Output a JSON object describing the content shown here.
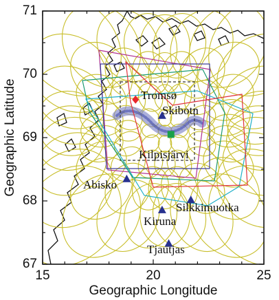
{
  "chart_data": {
    "type": "map",
    "xlabel": "Geographic Longitude",
    "ylabel": "Geographic Latitude",
    "xlim": [
      15,
      25
    ],
    "ylim": [
      67,
      71
    ],
    "x_ticks": [
      "15",
      "20",
      "25"
    ],
    "y_ticks": [
      "67",
      "68",
      "69",
      "70",
      "71"
    ],
    "stations": [
      {
        "name": "Tromsø",
        "lon": 19.2,
        "lat": 69.6,
        "marker": "diamond",
        "color": "#e8262a"
      },
      {
        "name": "Skibotn",
        "lon": 20.4,
        "lat": 69.35,
        "marker": "triangle",
        "color": "#27318f"
      },
      {
        "name": "Kilpisjärvi",
        "lon": 20.8,
        "lat": 69.05,
        "marker": "square",
        "color": "#19a04a"
      },
      {
        "name": "Abisko",
        "lon": 18.8,
        "lat": 68.35,
        "marker": "triangle",
        "color": "#27318f"
      },
      {
        "name": "Silkkimuotka",
        "lon": 21.7,
        "lat": 68.02,
        "marker": "triangle",
        "color": "#27318f"
      },
      {
        "name": "Kiruna",
        "lon": 20.4,
        "lat": 67.86,
        "marker": "triangle",
        "color": "#27318f"
      },
      {
        "name": "Tjautjas",
        "lon": 20.7,
        "lat": 67.33,
        "marker": "triangle",
        "color": "#27318f"
      }
    ],
    "colors": {
      "coastline": "#111111",
      "beam_ellipses": "#c8be2a",
      "fov_magenta": "#b03090",
      "fov_blue": "#3d3d9a",
      "fov_green": "#1a9a70",
      "fov_cyan": "#1fb0c8",
      "fov_red": "#e0323c",
      "aurora_arc": "#7f86c8"
    }
  }
}
